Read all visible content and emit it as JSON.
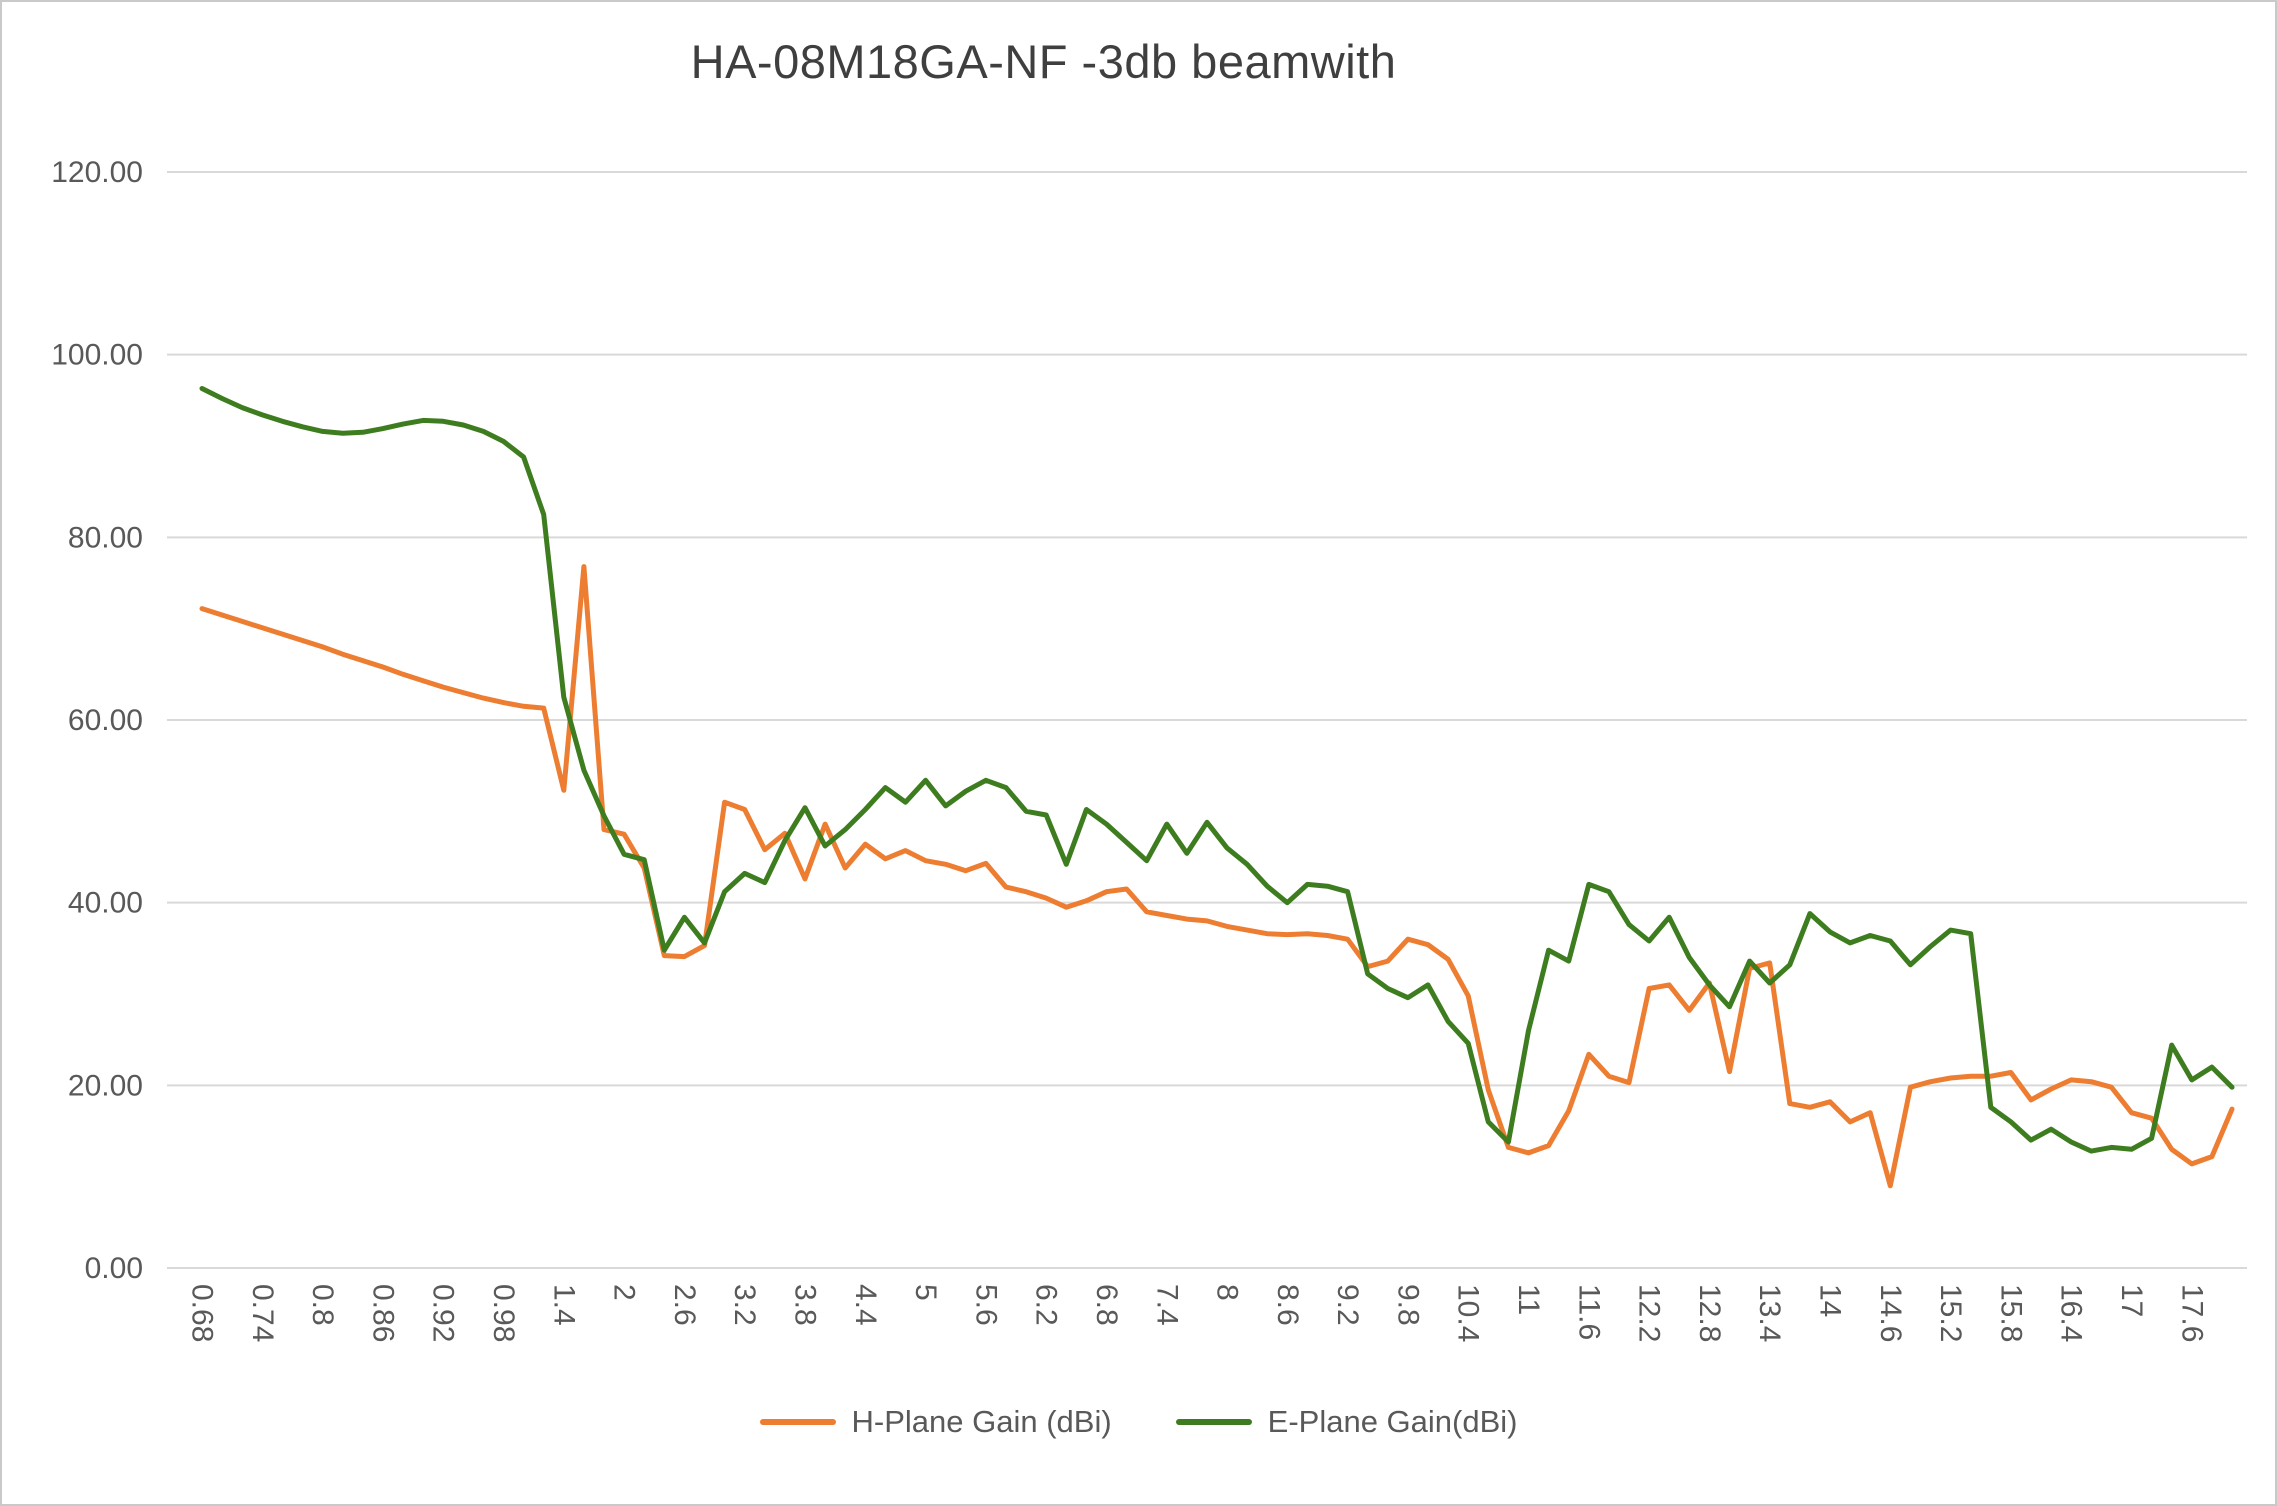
{
  "chart_data": {
    "type": "line",
    "title": "HA-08M18GA-NF -3db beamwith",
    "xlabel": "",
    "ylabel": "",
    "ylim": [
      0,
      120
    ],
    "y_ticks": [
      "0.00",
      "20.00",
      "40.00",
      "60.00",
      "80.00",
      "100.00",
      "120.00"
    ],
    "x_label_every": 3,
    "grid": "horizontal",
    "legend_position": "bottom",
    "colors": {
      "h_plane": "#ED7D31",
      "e_plane": "#3E7D1F",
      "gridline": "#D9D9D9",
      "axis_text": "#595959",
      "title_text": "#3F3F3F"
    },
    "categories": [
      0.68,
      0.7,
      0.72,
      0.74,
      0.76,
      0.78,
      0.8,
      0.82,
      0.84,
      0.86,
      0.88,
      0.9,
      0.92,
      0.94,
      0.96,
      0.98,
      1,
      1.2,
      1.4,
      1.6,
      1.8,
      2,
      2.2,
      2.4,
      2.6,
      2.8,
      3,
      3.2,
      3.4,
      3.6,
      3.8,
      4,
      4.2,
      4.4,
      4.6,
      4.8,
      5,
      5.2,
      5.4,
      5.6,
      5.8,
      6,
      6.2,
      6.4,
      6.6,
      6.8,
      7,
      7.2,
      7.4,
      7.6,
      7.8,
      8,
      8.2,
      8.4,
      8.6,
      8.8,
      9,
      9.2,
      9.4,
      9.6,
      9.8,
      10,
      10.2,
      10.4,
      10.6,
      10.8,
      11,
      11.2,
      11.4,
      11.6,
      11.8,
      12,
      12.2,
      12.4,
      12.6,
      12.8,
      13,
      13.2,
      13.4,
      13.6,
      13.8,
      14,
      14.2,
      14.4,
      14.6,
      14.8,
      15,
      15.2,
      15.4,
      15.6,
      15.8,
      16,
      16.2,
      16.4,
      16.6,
      16.8,
      17,
      17.2,
      17.4,
      17.6,
      17.8,
      18
    ],
    "series": [
      {
        "name": "H-Plane Gain (dBi)",
        "color": "#ED7D31",
        "values": [
          72.2,
          71.5,
          70.8,
          70.1,
          69.4,
          68.7,
          68,
          67.2,
          66.5,
          65.8,
          65,
          64.3,
          63.6,
          63,
          62.4,
          61.9,
          61.5,
          61.3,
          52.3,
          76.8,
          48,
          47.5,
          43.8,
          34.2,
          34.1,
          35.3,
          51,
          50.2,
          45.8,
          47.6,
          42.6,
          48.6,
          43.8,
          46.4,
          44.8,
          45.7,
          44.6,
          44.2,
          43.5,
          44.3,
          41.7,
          41.2,
          40.5,
          39.5,
          40.2,
          41.2,
          41.5,
          39,
          38.6,
          38.2,
          38,
          37.4,
          37,
          36.6,
          36.5,
          36.6,
          36.4,
          36,
          33,
          33.6,
          36,
          35.4,
          33.8,
          29.8,
          19.5,
          13.2,
          12.6,
          13.4,
          17.2,
          23.4,
          21,
          20.3,
          30.6,
          31,
          28.2,
          31.2,
          21.5,
          32.8,
          33.4,
          18,
          17.6,
          18.2,
          16,
          17,
          9,
          19.8,
          20.4,
          20.8,
          21,
          21,
          21.4,
          18.4,
          19.6,
          20.6,
          20.4,
          19.8,
          17,
          16.4,
          13,
          11.4,
          12.2,
          17.4
        ]
      },
      {
        "name": "E-Plane Gain(dBi)",
        "color": "#3E7D1F",
        "values": [
          96.3,
          95.2,
          94.2,
          93.4,
          92.7,
          92.1,
          91.6,
          91.4,
          91.5,
          91.9,
          92.4,
          92.8,
          92.7,
          92.3,
          91.6,
          90.5,
          88.8,
          82.5,
          62.5,
          54.5,
          49.5,
          45.3,
          44.7,
          34.8,
          38.4,
          35.6,
          41.2,
          43.2,
          42.2,
          46.8,
          50.4,
          46.2,
          48,
          50.2,
          52.6,
          51,
          53.4,
          50.6,
          52.2,
          53.4,
          52.6,
          50,
          49.6,
          44.2,
          50.2,
          48.6,
          46.6,
          44.6,
          48.6,
          45.4,
          48.8,
          46,
          44.2,
          41.8,
          40,
          42,
          41.8,
          41.2,
          32.2,
          30.6,
          29.6,
          31,
          27,
          24.6,
          16,
          13.8,
          26,
          34.8,
          33.6,
          42,
          41.2,
          37.6,
          35.8,
          38.4,
          34,
          31,
          28.6,
          33.6,
          31.2,
          33.2,
          38.8,
          36.8,
          35.6,
          36.4,
          35.8,
          33.2,
          35.2,
          37,
          36.6,
          17.6,
          16,
          14,
          15.2,
          13.8,
          12.8,
          13.2,
          13,
          14.2,
          24.4,
          20.6,
          22,
          19.8
        ]
      }
    ]
  }
}
